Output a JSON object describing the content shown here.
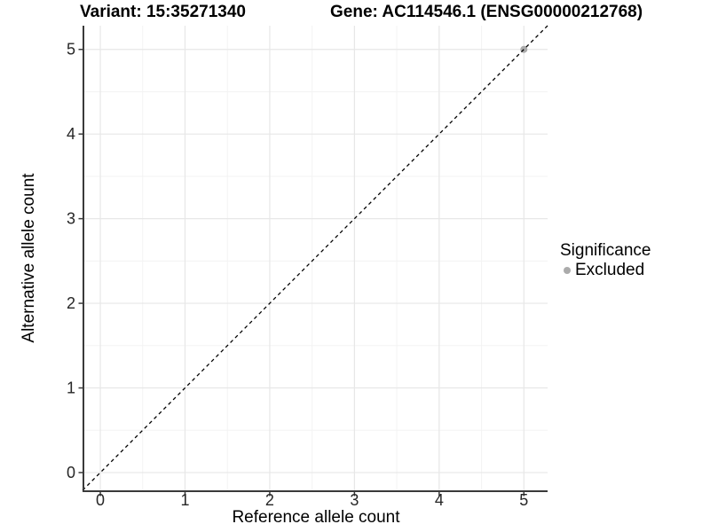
{
  "chart_data": {
    "type": "scatter",
    "title_left": "Variant: 15:35271340",
    "title_right": "Gene: AC114546.1 (ENSG00000212768)",
    "xlabel": "Reference allele count",
    "ylabel": "Alternative allele count",
    "xlim": [
      -0.21,
      5.28
    ],
    "ylim": [
      -0.21,
      5.28
    ],
    "xticks": [
      0,
      1,
      2,
      3,
      4,
      5
    ],
    "yticks": [
      0,
      1,
      2,
      3,
      4,
      5
    ],
    "minor_ticks": [
      0.5,
      1.5,
      2.5,
      3.5,
      4.5
    ],
    "grid": "major+minor",
    "identity_line": {
      "slope": 1,
      "intercept": 0,
      "style": "dashed",
      "color": "#000000"
    },
    "series": [
      {
        "name": "Excluded",
        "color": "#ababab",
        "points": [
          [
            5,
            5
          ]
        ]
      }
    ],
    "legend": {
      "title": "Significance",
      "position": "right",
      "items": [
        {
          "label": "Excluded",
          "color": "#ababab"
        }
      ]
    }
  },
  "colors": {
    "background": "#ffffff",
    "grid_major": "#e7e7e7",
    "grid_minor": "#f3f3f3",
    "axis_line": "#3a3a3a",
    "tick_text": "#262626"
  }
}
